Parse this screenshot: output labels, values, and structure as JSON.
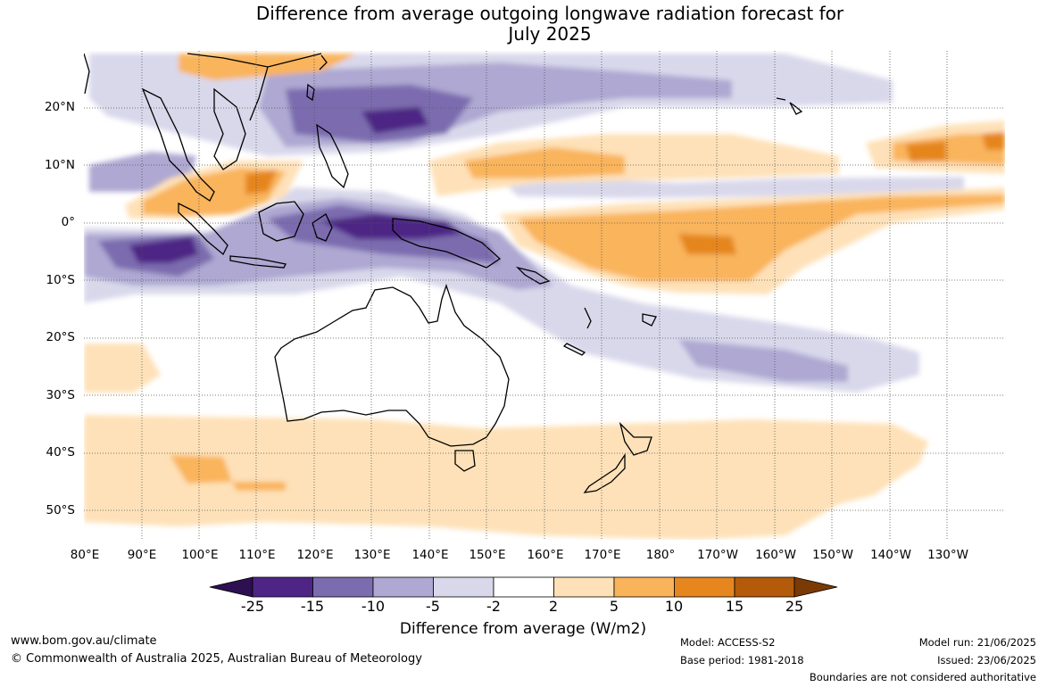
{
  "title_line1": "Difference from average outgoing longwave radiation forecast for",
  "title_line2": "July 2025",
  "lat_labels": [
    "20°N",
    "10°N",
    "0°",
    "10°S",
    "20°S",
    "30°S",
    "40°S",
    "50°S"
  ],
  "lon_labels": [
    "80°E",
    "90°E",
    "100°E",
    "110°E",
    "120°E",
    "130°E",
    "140°E",
    "150°E",
    "160°E",
    "170°E",
    "180°",
    "170°W",
    "160°W",
    "150°W",
    "140°W",
    "130°W"
  ],
  "colorbar": {
    "ticks": [
      "-25",
      "-15",
      "-10",
      "-5",
      "-2",
      "2",
      "5",
      "10",
      "15",
      "25"
    ],
    "colors": [
      "#2d0f52",
      "#4e2585",
      "#7b6caf",
      "#aea8d2",
      "#d9d8eb",
      "#ffffff",
      "#fee1b8",
      "#f9b45b",
      "#e5861f",
      "#b35a0b",
      "#7a3a05"
    ],
    "label": "Difference from average (W/m2)"
  },
  "footer": {
    "website": "www.bom.gov.au/climate",
    "copyright": "© Commonwealth of Australia 2025, Australian Bureau of Meteorology",
    "model": "Model: ACCESS-S2",
    "base_period": "Base period: 1981-2018",
    "model_run": "Model run: 21/06/2025",
    "issued": "Issued: 23/06/2025",
    "disclaimer": "Boundaries are not considered authoritative"
  }
}
